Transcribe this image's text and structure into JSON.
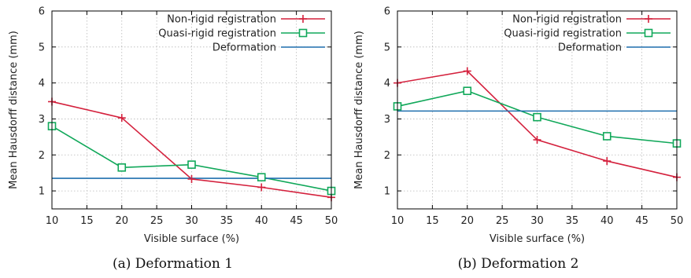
{
  "chart_data": [
    {
      "type": "line",
      "caption": "(a) Deformation 1",
      "xlabel": "Visible surface (%)",
      "ylabel": "Mean Hausdorff distance (mm)",
      "xlim": [
        10,
        50
      ],
      "ylim": [
        0.5,
        6
      ],
      "xticks": [
        10,
        15,
        20,
        25,
        30,
        35,
        40,
        45,
        50
      ],
      "yticks": [
        1,
        2,
        3,
        4,
        5,
        6
      ],
      "grid": true,
      "legend_position": "top-right",
      "series": [
        {
          "name": "Non-rigid registration",
          "color": "#d4213d",
          "marker": "plus",
          "x": [
            10,
            20,
            30,
            40,
            50
          ],
          "y": [
            3.48,
            3.03,
            1.33,
            1.1,
            0.82
          ]
        },
        {
          "name": "Quasi-rigid registration",
          "color": "#11a85a",
          "marker": "square",
          "x": [
            10,
            20,
            30,
            40,
            50
          ],
          "y": [
            2.8,
            1.65,
            1.73,
            1.38,
            1.0
          ]
        },
        {
          "name": "Deformation",
          "color": "#1f6fae",
          "marker": "none",
          "x": [
            10,
            50
          ],
          "y": [
            1.35,
            1.35
          ]
        }
      ]
    },
    {
      "type": "line",
      "caption": "(b) Deformation 2",
      "xlabel": "Visible surface (%)",
      "ylabel": "Mean Hausdorff distance (mm)",
      "xlim": [
        10,
        50
      ],
      "ylim": [
        0.5,
        6
      ],
      "xticks": [
        10,
        15,
        20,
        25,
        30,
        35,
        40,
        45,
        50
      ],
      "yticks": [
        1,
        2,
        3,
        4,
        5,
        6
      ],
      "grid": true,
      "legend_position": "top-right",
      "series": [
        {
          "name": "Non-rigid registration",
          "color": "#d4213d",
          "marker": "plus",
          "x": [
            10,
            20,
            30,
            40,
            50
          ],
          "y": [
            4.0,
            4.33,
            2.42,
            1.83,
            1.38
          ]
        },
        {
          "name": "Quasi-rigid registration",
          "color": "#11a85a",
          "marker": "square",
          "x": [
            10,
            20,
            30,
            40,
            50
          ],
          "y": [
            3.35,
            3.78,
            3.05,
            2.52,
            2.32
          ]
        },
        {
          "name": "Deformation",
          "color": "#1f6fae",
          "marker": "none",
          "x": [
            10,
            50
          ],
          "y": [
            3.22,
            3.22
          ]
        }
      ]
    }
  ]
}
